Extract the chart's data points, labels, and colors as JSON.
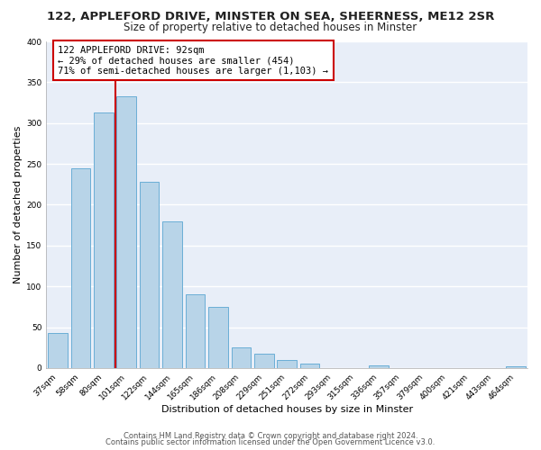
{
  "title": "122, APPLEFORD DRIVE, MINSTER ON SEA, SHEERNESS, ME12 2SR",
  "subtitle": "Size of property relative to detached houses in Minster",
  "xlabel": "Distribution of detached houses by size in Minster",
  "ylabel": "Number of detached properties",
  "bin_labels": [
    "37sqm",
    "58sqm",
    "80sqm",
    "101sqm",
    "122sqm",
    "144sqm",
    "165sqm",
    "186sqm",
    "208sqm",
    "229sqm",
    "251sqm",
    "272sqm",
    "293sqm",
    "315sqm",
    "336sqm",
    "357sqm",
    "379sqm",
    "400sqm",
    "421sqm",
    "443sqm",
    "464sqm"
  ],
  "bar_heights": [
    43,
    245,
    313,
    333,
    228,
    180,
    90,
    75,
    25,
    18,
    10,
    5,
    0,
    0,
    3,
    0,
    0,
    0,
    0,
    0,
    2
  ],
  "bar_color": "#b8d4e8",
  "bar_edge_color": "#6aaed6",
  "highlight_line_color": "#cc0000",
  "annotation_text": "122 APPLEFORD DRIVE: 92sqm\n← 29% of detached houses are smaller (454)\n71% of semi-detached houses are larger (1,103) →",
  "annotation_box_color": "#ffffff",
  "annotation_box_edge_color": "#cc0000",
  "ylim": [
    0,
    400
  ],
  "yticks": [
    0,
    50,
    100,
    150,
    200,
    250,
    300,
    350,
    400
  ],
  "footer_line1": "Contains HM Land Registry data © Crown copyright and database right 2024.",
  "footer_line2": "Contains public sector information licensed under the Open Government Licence v3.0.",
  "fig_bg_color": "#ffffff",
  "axes_bg_color": "#e8eef8",
  "grid_color": "#ffffff",
  "title_fontsize": 9.5,
  "subtitle_fontsize": 8.5,
  "axis_label_fontsize": 8,
  "tick_fontsize": 6.5,
  "annotation_fontsize": 7.5,
  "footer_fontsize": 6.0
}
